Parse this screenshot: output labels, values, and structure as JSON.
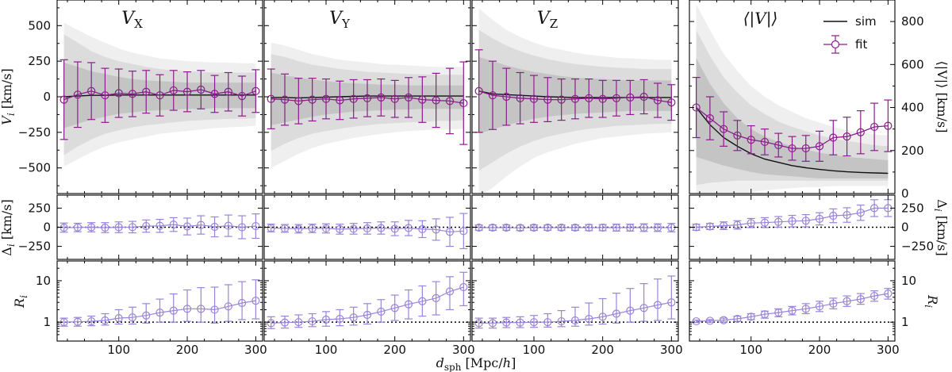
{
  "chart_data": {
    "type": "line",
    "description_axes": {
      "xlabel": "d_sph [Mpc/h]",
      "xlabel_main": "d",
      "xlabel_sub": "sph",
      "xlabel_unit": "[Mpc/",
      "xlabel_unit_italic": "h",
      "xlabel_unit_end": "]",
      "xlim": [
        10,
        310
      ],
      "xticks": [
        100,
        200,
        300
      ]
    },
    "colors": {
      "fit": "#8b1c8b",
      "residual": "#9a84d8",
      "sim": "#111111",
      "band_outer": "#efefef",
      "band_mid": "#dcdcdc",
      "band_inner": "#c4c4c4"
    },
    "legend": {
      "sim_label": "sim",
      "fit_label": "fit",
      "placement": "top-right"
    },
    "rows": {
      "top": {
        "left_label": "V_i [km/s]",
        "left_label_main": "V",
        "left_label_sub": "i",
        "left_label_unit": " [km/s]",
        "right_label": "⟨|V|⟩ [km/s]",
        "right_label_main": "⟨|V|⟩",
        "right_label_unit": " [km/s]",
        "left_ylim": [
          -680,
          680
        ],
        "left_ticks": [
          500,
          250,
          0,
          -250,
          -500
        ],
        "left_tick_labels": [
          "500",
          "250",
          "0",
          "−250",
          "−500"
        ],
        "right_ylim": [
          0,
          900
        ],
        "right_ticks": [
          800,
          600,
          400,
          200,
          0
        ],
        "right_tick_labels": [
          "800",
          "600",
          "400",
          "200",
          "0"
        ]
      },
      "delta": {
        "left_label": "Δ_i [km/s]",
        "left_label_main": "Δ",
        "left_label_sub": "i",
        "left_label_unit": " [km/s]",
        "ylim": [
          -420,
          420
        ],
        "ticks": [
          250,
          0,
          -250
        ],
        "tick_labels": [
          "250",
          "0",
          "−250"
        ]
      },
      "ratio": {
        "left_label": "R_i",
        "left_label_main": "R",
        "left_label_sub": "i",
        "ylim_log": [
          0.35,
          30
        ],
        "ticks": [
          10,
          1
        ],
        "tick_labels": [
          "10",
          "1"
        ]
      }
    },
    "x_centers": [
      20,
      40,
      60,
      80,
      100,
      120,
      140,
      160,
      180,
      200,
      220,
      240,
      260,
      280,
      300
    ],
    "panels": [
      {
        "title_main": "V",
        "title_sub": "X",
        "sim": [
          0,
          5,
          10,
          10,
          12,
          12,
          12,
          12,
          12,
          12,
          12,
          12,
          12,
          12,
          12
        ],
        "band_outer": {
          "low": [
            -490,
            -440,
            -390,
            -350,
            -320,
            -300,
            -280,
            -260,
            -250,
            -240,
            -230,
            -220,
            -215,
            -210,
            -205
          ],
          "high": [
            520,
            470,
            420,
            380,
            340,
            310,
            290,
            270,
            260,
            250,
            245,
            240,
            240,
            235,
            235
          ]
        },
        "band_mid": {
          "low": [
            -410,
            -350,
            -300,
            -260,
            -235,
            -215,
            -200,
            -190,
            -180,
            -170,
            -165,
            -160,
            -155,
            -155,
            -150
          ],
          "high": [
            440,
            380,
            320,
            280,
            250,
            230,
            210,
            195,
            185,
            180,
            175,
            170,
            170,
            170,
            170
          ]
        },
        "band_inner": {
          "low": [
            -220,
            -190,
            -160,
            -140,
            -120,
            -110,
            -100,
            -95,
            -90,
            -85,
            -85,
            -80,
            -80,
            -80,
            -80
          ],
          "high": [
            240,
            210,
            180,
            160,
            140,
            125,
            115,
            110,
            105,
            100,
            100,
            100,
            100,
            100,
            100
          ]
        },
        "fit": [
          -20,
          15,
          40,
          10,
          25,
          20,
          35,
          10,
          45,
          35,
          50,
          20,
          35,
          5,
          40
        ],
        "fit_err": [
          280,
          230,
          200,
          190,
          170,
          160,
          150,
          145,
          140,
          140,
          135,
          130,
          135,
          140,
          150
        ],
        "delta": [
          -5,
          -3,
          0,
          -5,
          0,
          2,
          15,
          18,
          35,
          10,
          30,
          5,
          20,
          0,
          15
        ],
        "delta_err": [
          60,
          55,
          60,
          65,
          70,
          75,
          80,
          85,
          90,
          110,
          120,
          130,
          140,
          150,
          160
        ],
        "ratio": [
          1.0,
          1.02,
          1.05,
          1.1,
          1.25,
          1.3,
          1.45,
          1.7,
          1.9,
          2.1,
          2.1,
          2.0,
          2.4,
          2.9,
          3.3
        ],
        "ratio_low": [
          0.8,
          0.8,
          0.82,
          0.85,
          0.9,
          0.9,
          0.95,
          1.0,
          1.0,
          1.05,
          1.0,
          0.95,
          1.05,
          1.15,
          1.2
        ],
        "ratio_high": [
          1.25,
          1.3,
          1.4,
          1.6,
          2.0,
          2.3,
          2.8,
          3.6,
          4.8,
          6.0,
          6.8,
          7.0,
          8.0,
          9.5,
          10.5
        ]
      },
      {
        "title_main": "V",
        "title_sub": "Y",
        "sim": [
          -5,
          -5,
          -8,
          -5,
          -2,
          0,
          3,
          5,
          5,
          5,
          5,
          5,
          5,
          5,
          5
        ],
        "band_outer": {
          "low": [
            -500,
            -450,
            -400,
            -360,
            -330,
            -310,
            -290,
            -275,
            -260,
            -250,
            -240,
            -235,
            -230,
            -230,
            -225
          ],
          "high": [
            380,
            360,
            330,
            300,
            280,
            260,
            250,
            240,
            230,
            225,
            220,
            215,
            210,
            210,
            210
          ]
        },
        "band_mid": {
          "low": [
            -380,
            -330,
            -290,
            -260,
            -240,
            -225,
            -210,
            -200,
            -190,
            -185,
            -180,
            -175,
            -170,
            -170,
            -165
          ],
          "high": [
            300,
            280,
            250,
            225,
            210,
            195,
            185,
            175,
            170,
            165,
            160,
            158,
            155,
            155,
            155
          ]
        },
        "band_inner": {
          "low": [
            -200,
            -180,
            -160,
            -140,
            -125,
            -115,
            -105,
            -100,
            -95,
            -90,
            -90,
            -85,
            -85,
            -85,
            -85
          ],
          "high": [
            170,
            150,
            135,
            120,
            110,
            100,
            95,
            90,
            85,
            85,
            80,
            80,
            80,
            80,
            80
          ]
        },
        "fit": [
          -15,
          -20,
          -30,
          -20,
          -15,
          -25,
          -15,
          -10,
          -5,
          -15,
          -5,
          -20,
          -25,
          -30,
          -45
        ],
        "fit_err": [
          210,
          180,
          160,
          150,
          140,
          135,
          135,
          130,
          130,
          130,
          140,
          160,
          190,
          230,
          290
        ],
        "delta": [
          -10,
          -15,
          -20,
          -15,
          -15,
          -25,
          -20,
          -15,
          -10,
          -20,
          -10,
          -25,
          -30,
          -60,
          -50
        ],
        "delta_err": [
          50,
          50,
          55,
          55,
          60,
          65,
          70,
          75,
          80,
          90,
          100,
          110,
          140,
          190,
          230
        ],
        "ratio": [
          0.95,
          0.98,
          1.0,
          1.05,
          1.15,
          1.2,
          1.3,
          1.5,
          1.8,
          2.2,
          2.7,
          3.2,
          3.8,
          5.5,
          7.0
        ],
        "ratio_low": [
          0.7,
          0.72,
          0.75,
          0.78,
          0.8,
          0.82,
          0.85,
          0.9,
          1.0,
          1.1,
          1.2,
          1.4,
          1.5,
          2.0,
          2.5
        ],
        "ratio_high": [
          1.35,
          1.4,
          1.5,
          1.6,
          1.8,
          2.0,
          2.3,
          2.8,
          3.5,
          4.5,
          6.0,
          7.5,
          9.5,
          12.5,
          16.0
        ]
      },
      {
        "title_main": "V",
        "title_sub": "Z",
        "sim": [
          40,
          20,
          15,
          10,
          5,
          0,
          -2,
          -5,
          -5,
          -5,
          -5,
          -5,
          -5,
          -5,
          -5
        ],
        "band_outer": {
          "low": [
            -700,
            -640,
            -560,
            -490,
            -430,
            -390,
            -360,
            -330,
            -310,
            -290,
            -280,
            -270,
            -260,
            -255,
            -250
          ],
          "high": [
            620,
            540,
            470,
            420,
            380,
            350,
            330,
            310,
            295,
            285,
            275,
            270,
            265,
            260,
            260
          ]
        },
        "band_mid": {
          "low": [
            -520,
            -460,
            -400,
            -350,
            -310,
            -280,
            -260,
            -240,
            -225,
            -215,
            -205,
            -200,
            -195,
            -190,
            -190
          ],
          "high": [
            470,
            410,
            360,
            320,
            290,
            265,
            245,
            230,
            220,
            210,
            205,
            200,
            195,
            195,
            195
          ]
        },
        "band_inner": {
          "low": [
            -260,
            -230,
            -200,
            -175,
            -155,
            -140,
            -130,
            -120,
            -115,
            -110,
            -105,
            -100,
            -100,
            -100,
            -100
          ],
          "high": [
            280,
            250,
            220,
            195,
            175,
            160,
            145,
            135,
            130,
            125,
            120,
            115,
            115,
            115,
            115
          ]
        },
        "fit": [
          40,
          10,
          0,
          -10,
          -15,
          -20,
          -20,
          -15,
          -10,
          -15,
          -10,
          -5,
          0,
          -25,
          -40
        ],
        "fit_err": [
          290,
          240,
          200,
          180,
          165,
          155,
          145,
          140,
          135,
          130,
          125,
          120,
          120,
          120,
          125
        ],
        "delta": [
          -5,
          -5,
          -5,
          -8,
          -5,
          -5,
          -5,
          -5,
          -5,
          -5,
          -5,
          -5,
          -5,
          -5,
          -5
        ],
        "delta_err": [
          35,
          35,
          35,
          35,
          35,
          35,
          35,
          35,
          40,
          40,
          45,
          45,
          50,
          50,
          55
        ],
        "ratio": [
          0.95,
          0.95,
          0.98,
          0.98,
          1.0,
          1.0,
          1.05,
          1.1,
          1.2,
          1.35,
          1.6,
          1.9,
          2.2,
          2.6,
          3.0
        ],
        "ratio_low": [
          0.72,
          0.72,
          0.74,
          0.74,
          0.75,
          0.76,
          0.78,
          0.8,
          0.85,
          0.9,
          0.95,
          1.0,
          1.05,
          1.1,
          1.2
        ],
        "ratio_high": [
          1.25,
          1.25,
          1.3,
          1.35,
          1.45,
          1.6,
          1.9,
          2.3,
          2.9,
          3.7,
          5.0,
          6.5,
          8.5,
          11.0,
          13.0
        ]
      },
      {
        "title_main": "⟨|V|⟩",
        "sim": [
          400,
          320,
          260,
          220,
          185,
          160,
          145,
          130,
          120,
          112,
          106,
          101,
          98,
          96,
          94
        ],
        "band_outer": {
          "low": [
            -60,
            -40,
            -20,
            -5,
            5,
            15,
            20,
            25,
            30,
            30,
            35,
            35,
            35,
            35,
            35
          ],
          "high": [
            880,
            760,
            650,
            570,
            500,
            450,
            410,
            380,
            350,
            330,
            310,
            295,
            285,
            275,
            270
          ]
        },
        "band_mid": {
          "low": [
            40,
            50,
            55,
            60,
            60,
            60,
            60,
            60,
            60,
            60,
            60,
            60,
            60,
            60,
            60
          ],
          "high": [
            760,
            640,
            540,
            470,
            410,
            370,
            335,
            310,
            290,
            270,
            255,
            245,
            235,
            225,
            220
          ]
        },
        "band_inner": {
          "low": [
            170,
            150,
            130,
            115,
            100,
            90,
            85,
            80,
            75,
            70,
            70,
            70,
            70,
            70,
            70
          ],
          "high": [
            630,
            510,
            420,
            350,
            300,
            265,
            240,
            220,
            205,
            190,
            180,
            170,
            165,
            160,
            155
          ]
        },
        "fit": [
          400,
          350,
          300,
          270,
          250,
          240,
          225,
          210,
          210,
          220,
          260,
          265,
          285,
          310,
          315
        ],
        "fit_err": [
          140,
          100,
          80,
          70,
          65,
          60,
          55,
          55,
          60,
          70,
          80,
          90,
          100,
          110,
          120
        ],
        "delta": [
          0,
          10,
          20,
          30,
          55,
          60,
          70,
          80,
          85,
          110,
          150,
          160,
          190,
          250,
          250
        ],
        "delta_err": [
          40,
          40,
          50,
          55,
          60,
          65,
          70,
          75,
          80,
          80,
          90,
          95,
          100,
          110,
          110
        ],
        "ratio": [
          1.05,
          1.08,
          1.12,
          1.2,
          1.35,
          1.55,
          1.7,
          1.9,
          2.1,
          2.4,
          2.8,
          3.2,
          3.6,
          4.3,
          4.9
        ],
        "ratio_low": [
          0.98,
          1.0,
          1.0,
          1.05,
          1.15,
          1.25,
          1.35,
          1.5,
          1.6,
          1.8,
          2.1,
          2.4,
          2.7,
          3.2,
          3.6
        ],
        "ratio_high": [
          1.12,
          1.16,
          1.25,
          1.4,
          1.6,
          1.85,
          2.1,
          2.4,
          2.8,
          3.2,
          3.8,
          4.3,
          4.9,
          5.7,
          6.5
        ]
      }
    ]
  }
}
